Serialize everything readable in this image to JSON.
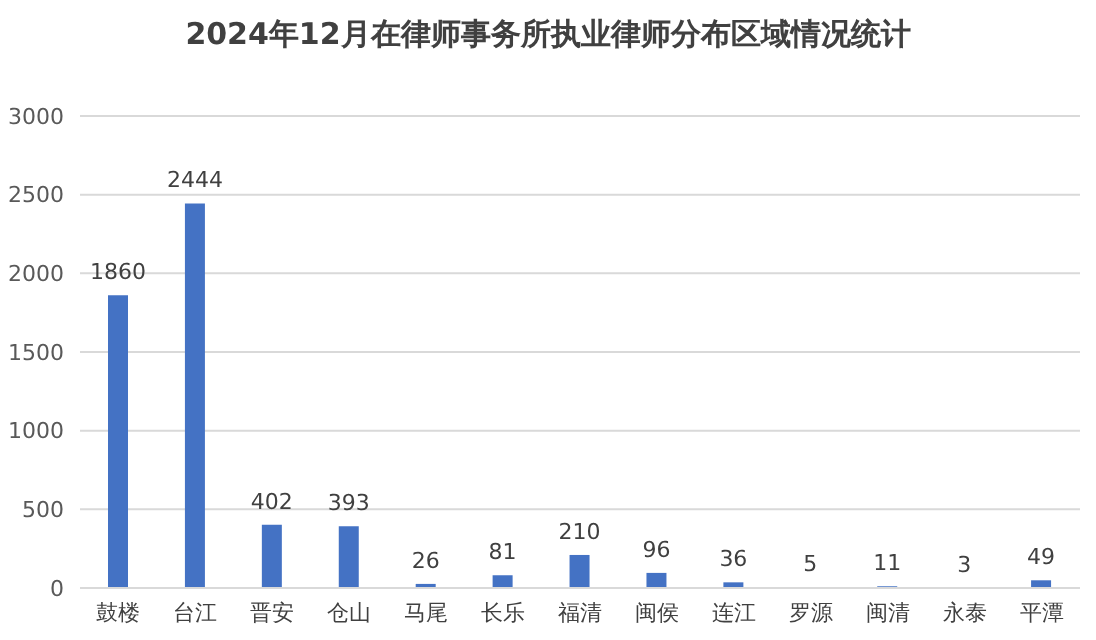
{
  "chart_data": {
    "type": "bar",
    "title": "2024年12月在律师事务所执业律师分布区域情况统计",
    "categories": [
      "鼓楼",
      "台江",
      "晋安",
      "仓山",
      "马尾",
      "长乐",
      "福清",
      "闽侯",
      "连江",
      "罗源",
      "闽清",
      "永泰",
      "平潭"
    ],
    "values": [
      1860,
      2444,
      402,
      393,
      26,
      81,
      210,
      96,
      36,
      5,
      11,
      3,
      49
    ],
    "color": "#4472c4",
    "ylim": [
      0,
      3000
    ],
    "yticks": [
      0,
      500,
      1000,
      1500,
      2000,
      2500,
      3000
    ],
    "grid": "y",
    "data_labels": true
  }
}
